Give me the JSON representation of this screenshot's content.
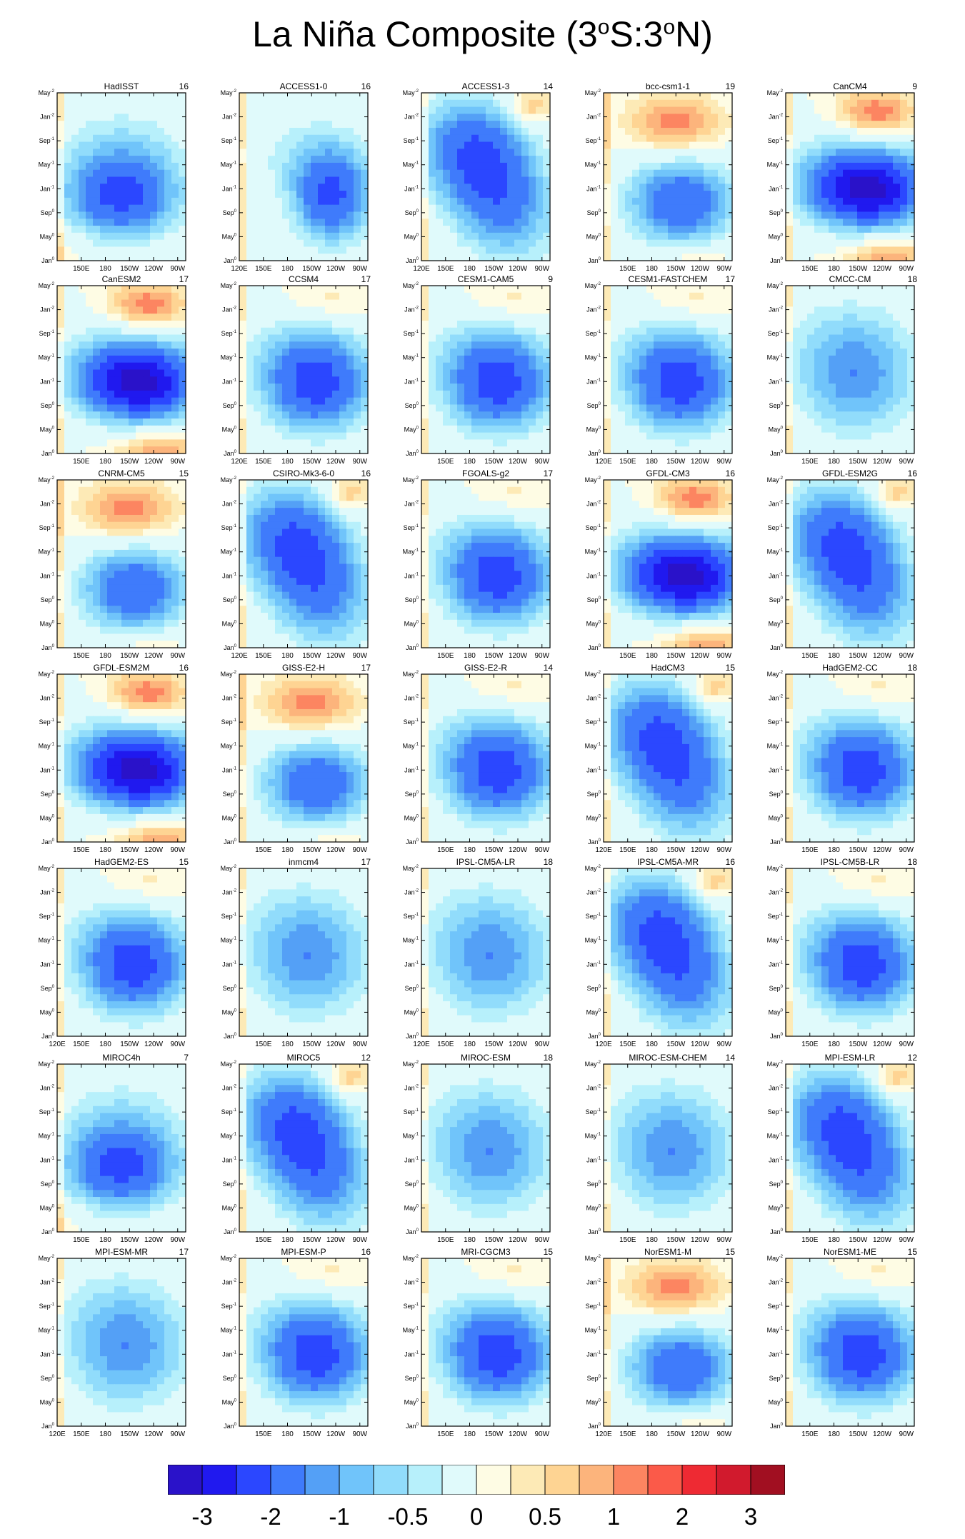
{
  "title": {
    "main": "La Niña Composite (3",
    "deg1": "o",
    "mid": "S:3",
    "deg2": "o",
    "end": "N)"
  },
  "chart_data": {
    "type": "heatmap",
    "rows": 7,
    "cols": 5,
    "y_ticks": [
      "May⁻²",
      "Jan⁻²",
      "Sep⁻¹",
      "May⁻¹",
      "Jan⁻¹",
      "Sep⁰",
      "May⁰",
      "Jan⁰"
    ],
    "y_ticks_raw": [
      [
        "May",
        "-2"
      ],
      [
        "Jan",
        "-2"
      ],
      [
        "Sep",
        "-1"
      ],
      [
        "May",
        "-1"
      ],
      [
        "Jan",
        "-1"
      ],
      [
        "Sep",
        "0"
      ],
      [
        "May",
        "0"
      ],
      [
        "Jan",
        "0"
      ]
    ],
    "x_range_deg_east": [
      120,
      280
    ],
    "panels": [
      {
        "name": "HadISST",
        "count": "16",
        "xticks": [
          "150E",
          "180",
          "150W",
          "120W",
          "90W"
        ],
        "pattern": "obs"
      },
      {
        "name": "ACCESS1-0",
        "count": "16",
        "xticks": [
          "120E",
          "150E",
          "180",
          "150W",
          "120W",
          "90W"
        ],
        "pattern": "east"
      },
      {
        "name": "ACCESS1-3",
        "count": "14",
        "xticks": [
          "120E",
          "150E",
          "180",
          "150W",
          "120W",
          "90W"
        ],
        "pattern": "diag"
      },
      {
        "name": "bcc-csm1-1",
        "count": "19",
        "xticks": [
          "150E",
          "180",
          "150W",
          "120W",
          "90W"
        ],
        "pattern": "redtop"
      },
      {
        "name": "CanCM4",
        "count": "9",
        "xticks": [
          "150E",
          "180",
          "150W",
          "120W",
          "90W"
        ],
        "pattern": "strong"
      },
      {
        "name": "CanESM2",
        "count": "17",
        "xticks": [
          "150E",
          "180",
          "150W",
          "120W",
          "90W"
        ],
        "pattern": "strong"
      },
      {
        "name": "CCSM4",
        "count": "17",
        "xticks": [
          "120E",
          "150E",
          "180",
          "150W",
          "120W",
          "90W"
        ],
        "pattern": "medium"
      },
      {
        "name": "CESM1-CAM5",
        "count": "9",
        "xticks": [
          "150E",
          "180",
          "150W",
          "120W",
          "90W"
        ],
        "pattern": "medium"
      },
      {
        "name": "CESM1-FASTCHEM",
        "count": "17",
        "xticks": [
          "120E",
          "150E",
          "180",
          "150W",
          "120W",
          "90W"
        ],
        "pattern": "medium"
      },
      {
        "name": "CMCC-CM",
        "count": "18",
        "xticks": [
          "150E",
          "180",
          "150W",
          "120W",
          "90W"
        ],
        "pattern": "weak"
      },
      {
        "name": "CNRM-CM5",
        "count": "15",
        "xticks": [
          "150E",
          "180",
          "150W",
          "120W",
          "90W"
        ],
        "pattern": "redtop"
      },
      {
        "name": "CSIRO-Mk3-6-0",
        "count": "16",
        "xticks": [
          "120E",
          "150E",
          "180",
          "150W",
          "120W",
          "90W"
        ],
        "pattern": "diag"
      },
      {
        "name": "FGOALS-g2",
        "count": "17",
        "xticks": [
          "150E",
          "180",
          "150W",
          "120W",
          "90W"
        ],
        "pattern": "medium"
      },
      {
        "name": "GFDL-CM3",
        "count": "16",
        "xticks": [
          "150E",
          "180",
          "150W",
          "120W",
          "90W"
        ],
        "pattern": "strong"
      },
      {
        "name": "GFDL-ESM2G",
        "count": "16",
        "xticks": [
          "150E",
          "180",
          "150W",
          "120W",
          "90W"
        ],
        "pattern": "diag"
      },
      {
        "name": "GFDL-ESM2M",
        "count": "16",
        "xticks": [
          "150E",
          "180",
          "150W",
          "120W",
          "90W"
        ],
        "pattern": "strong"
      },
      {
        "name": "GISS-E2-H",
        "count": "17",
        "xticks": [
          "150E",
          "180",
          "150W",
          "120W",
          "90W"
        ],
        "pattern": "redtop"
      },
      {
        "name": "GISS-E2-R",
        "count": "14",
        "xticks": [
          "150E",
          "180",
          "150W",
          "120W",
          "90W"
        ],
        "pattern": "medium"
      },
      {
        "name": "HadCM3",
        "count": "15",
        "xticks": [
          "120E",
          "150E",
          "180",
          "150W",
          "120W",
          "90W"
        ],
        "pattern": "diag"
      },
      {
        "name": "HadGEM2-CC",
        "count": "18",
        "xticks": [
          "150E",
          "180",
          "150W",
          "120W",
          "90W"
        ],
        "pattern": "medium"
      },
      {
        "name": "HadGEM2-ES",
        "count": "15",
        "xticks": [
          "120E",
          "150E",
          "180",
          "150W",
          "120W",
          "90W"
        ],
        "pattern": "medium"
      },
      {
        "name": "inmcm4",
        "count": "17",
        "xticks": [
          "150E",
          "180",
          "150W",
          "120W",
          "90W"
        ],
        "pattern": "weak"
      },
      {
        "name": "IPSL-CM5A-LR",
        "count": "18",
        "xticks": [
          "120E",
          "150E",
          "180",
          "150W",
          "120W",
          "90W"
        ],
        "pattern": "weak"
      },
      {
        "name": "IPSL-CM5A-MR",
        "count": "16",
        "xticks": [
          "120E",
          "150E",
          "180",
          "150W",
          "120W",
          "90W"
        ],
        "pattern": "diag"
      },
      {
        "name": "IPSL-CM5B-LR",
        "count": "18",
        "xticks": [
          "150E",
          "180",
          "150W",
          "120W",
          "90W"
        ],
        "pattern": "medium"
      },
      {
        "name": "MIROC4h",
        "count": "7",
        "xticks": [
          "150E",
          "180",
          "150W",
          "120W",
          "90W"
        ],
        "pattern": "obs"
      },
      {
        "name": "MIROC5",
        "count": "12",
        "xticks": [
          "150E",
          "180",
          "150W",
          "120W",
          "90W"
        ],
        "pattern": "diag"
      },
      {
        "name": "MIROC-ESM",
        "count": "18",
        "xticks": [
          "150E",
          "180",
          "150W",
          "120W",
          "90W"
        ],
        "pattern": "weak"
      },
      {
        "name": "MIROC-ESM-CHEM",
        "count": "14",
        "xticks": [
          "150E",
          "180",
          "150W",
          "120W",
          "90W"
        ],
        "pattern": "weak"
      },
      {
        "name": "MPI-ESM-LR",
        "count": "12",
        "xticks": [
          "150E",
          "180",
          "150W",
          "120W",
          "90W"
        ],
        "pattern": "diag"
      },
      {
        "name": "MPI-ESM-MR",
        "count": "17",
        "xticks": [
          "120E",
          "150E",
          "180",
          "150W",
          "120W",
          "90W"
        ],
        "pattern": "weak"
      },
      {
        "name": "MPI-ESM-P",
        "count": "16",
        "xticks": [
          "150E",
          "180",
          "150W",
          "120W",
          "90W"
        ],
        "pattern": "medium"
      },
      {
        "name": "MRI-CGCM3",
        "count": "15",
        "xticks": [
          "150E",
          "180",
          "150W",
          "120W",
          "90W"
        ],
        "pattern": "medium"
      },
      {
        "name": "NorESM1-M",
        "count": "15",
        "xticks": [
          "120E",
          "150E",
          "180",
          "150W",
          "120W",
          "90W"
        ],
        "pattern": "redtop"
      },
      {
        "name": "NorESM1-ME",
        "count": "15",
        "xticks": [
          "150E",
          "180",
          "150W",
          "120W",
          "90W"
        ],
        "pattern": "medium"
      }
    ],
    "colorbar": {
      "labels": [
        "-3",
        "-2",
        "-1",
        "-0.5",
        "0",
        "0.5",
        "1",
        "2",
        "3"
      ],
      "label_after_box": [
        1,
        3,
        5,
        7,
        9,
        11,
        13,
        15,
        17
      ],
      "colors": [
        "#2a12c9",
        "#2019ef",
        "#2b47ff",
        "#3f7bfb",
        "#54a0f6",
        "#70c4fa",
        "#91dcfb",
        "#b7f0fb",
        "#e0fafb",
        "#fefce4",
        "#fdeab6",
        "#fed493",
        "#fcb47c",
        "#fc8561",
        "#fb5a49",
        "#ee2a33",
        "#d11a2d",
        "#a10f21"
      ]
    }
  }
}
